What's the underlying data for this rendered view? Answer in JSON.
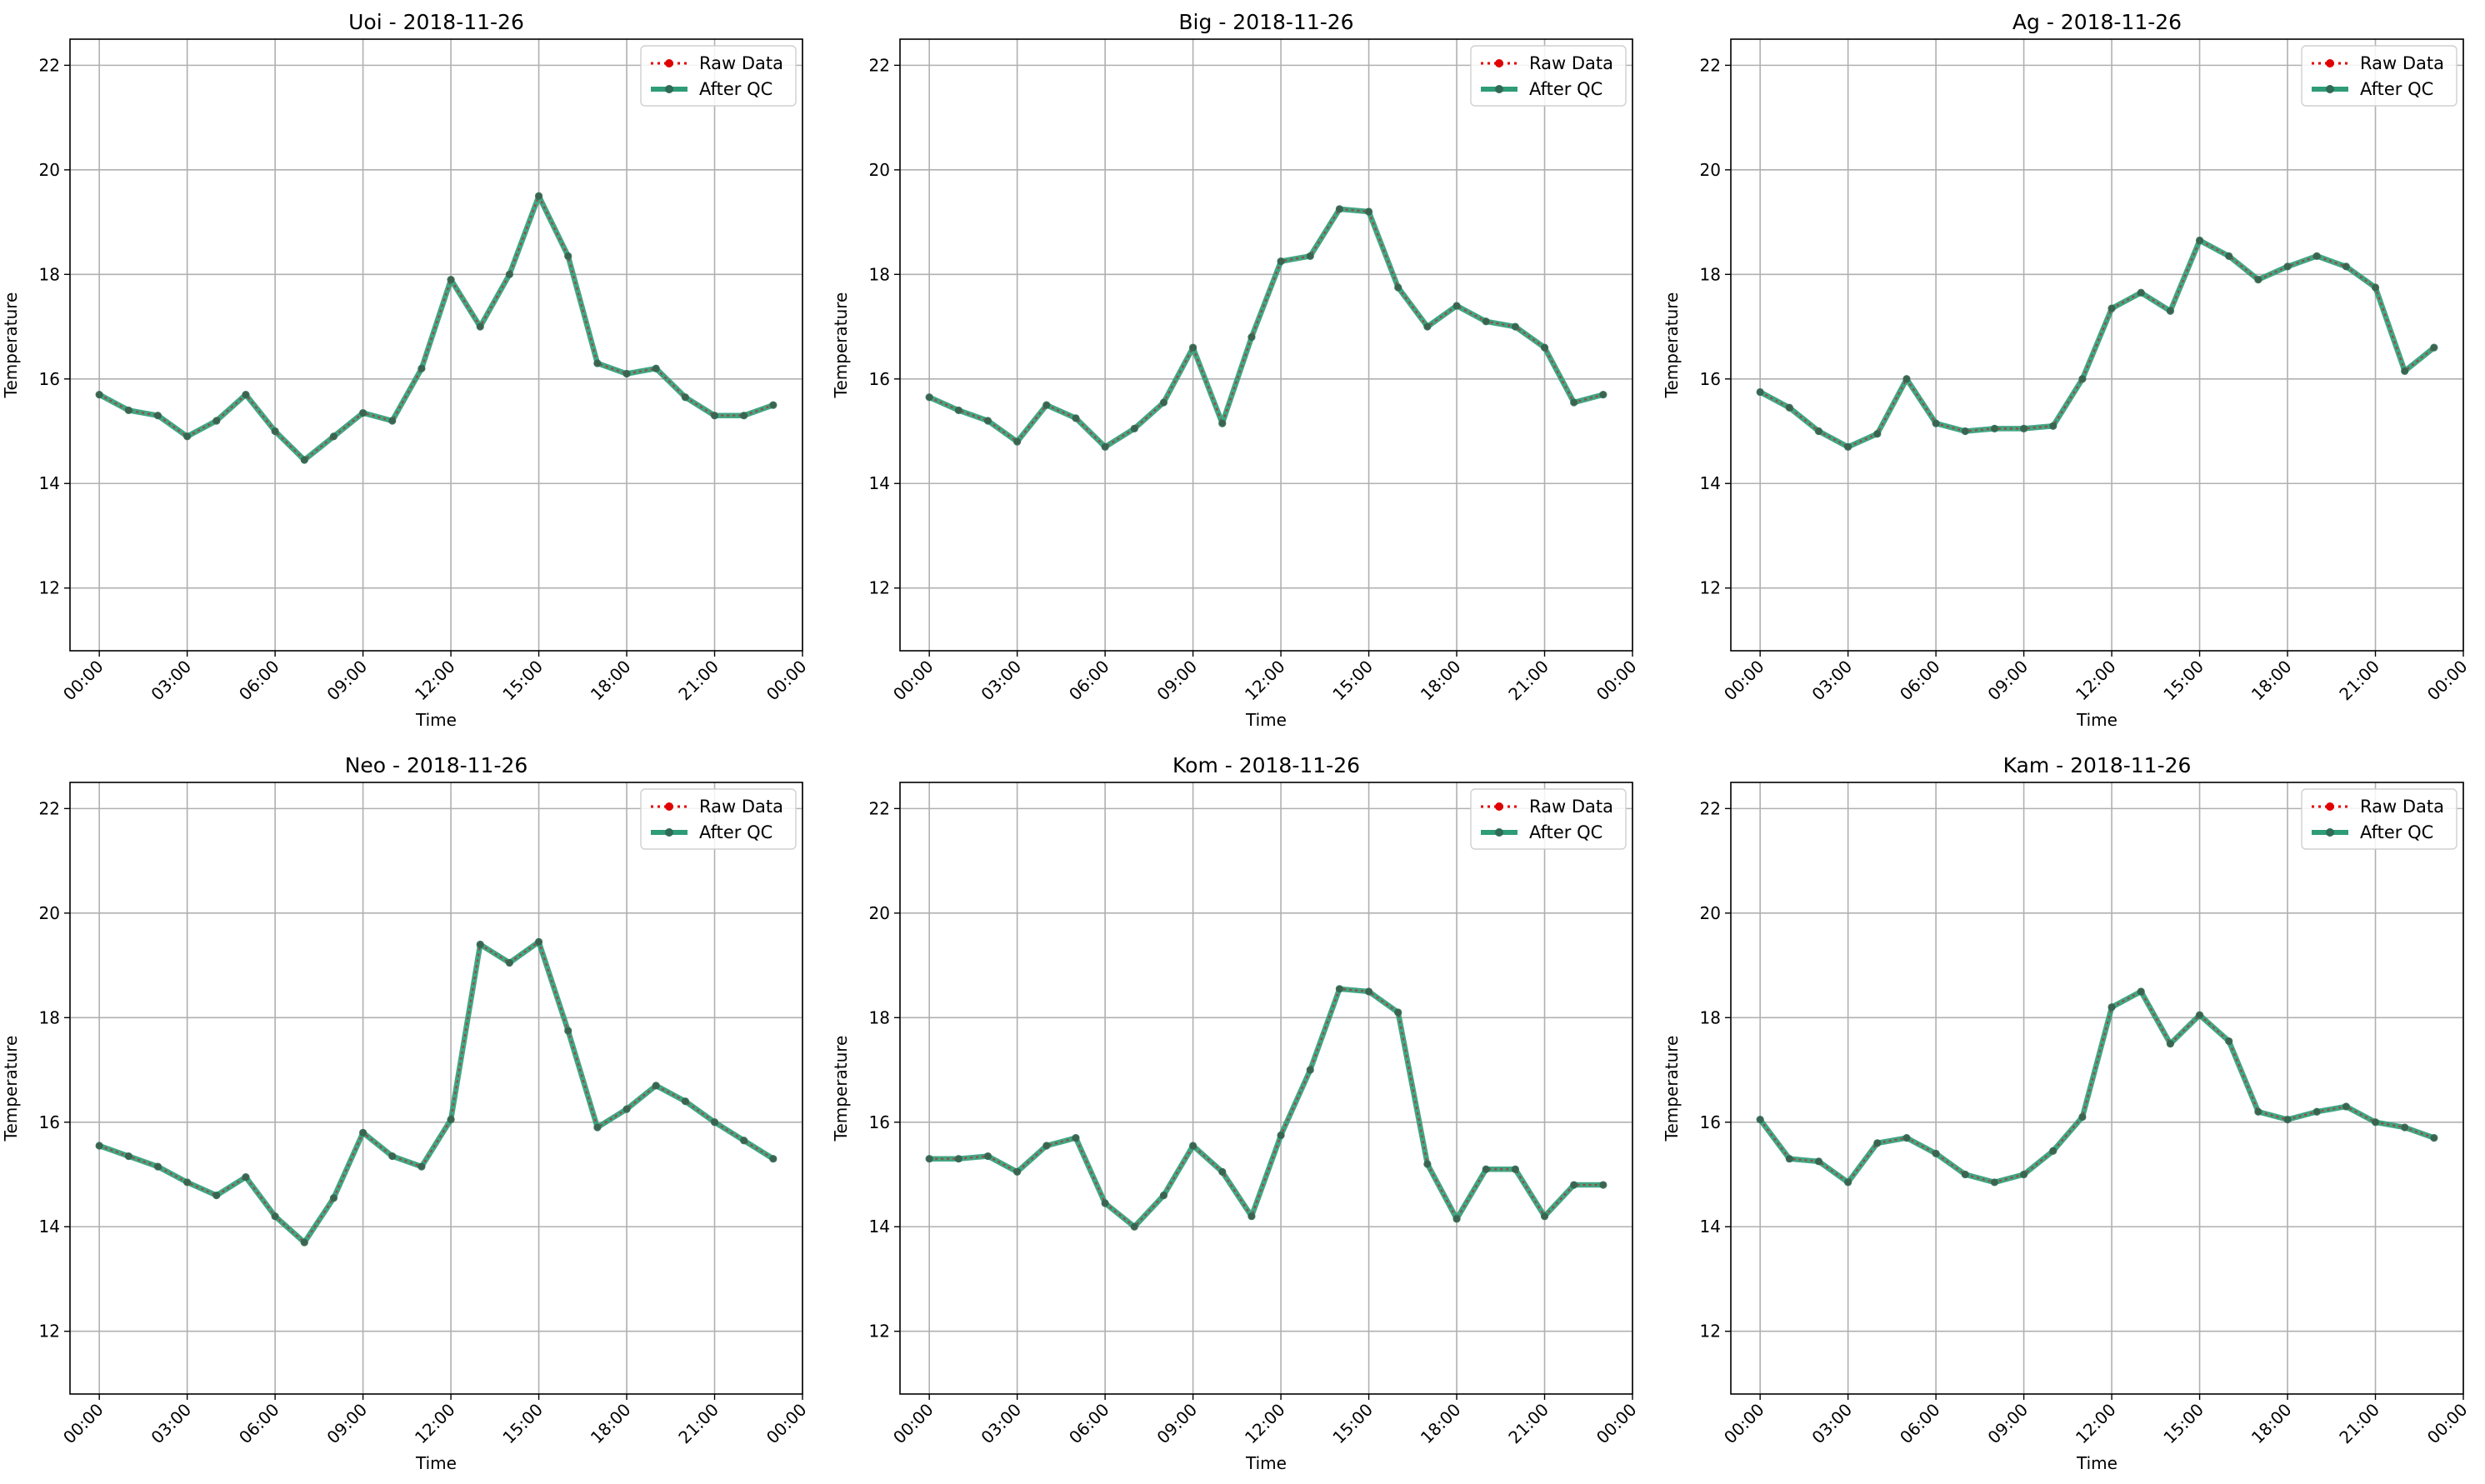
{
  "colors": {
    "raw": "#e00000",
    "qc": "#2e9c78",
    "grid": "#b0b0b0",
    "marker": "#2f6b56"
  },
  "chart_data": [
    {
      "type": "line",
      "title": "Uoi - 2018-11-26",
      "xlabel": "Time",
      "ylabel": "Temperature",
      "xlim": [
        -1,
        24
      ],
      "ylim": [
        10.8,
        22.5
      ],
      "x_ticks": [
        "00:00",
        "03:00",
        "06:00",
        "09:00",
        "12:00",
        "15:00",
        "18:00",
        "21:00",
        "00:00"
      ],
      "y_ticks": [
        "12",
        "14",
        "16",
        "18",
        "20",
        "22"
      ],
      "grid": true,
      "legend": "top-right",
      "legend_entries": [
        "Raw Data",
        "After QC"
      ],
      "x": [
        "00:00",
        "01:00",
        "02:00",
        "03:00",
        "04:00",
        "05:00",
        "06:00",
        "07:00",
        "08:00",
        "09:00",
        "10:00",
        "11:00",
        "12:00",
        "13:00",
        "14:00",
        "15:00",
        "16:00",
        "17:00",
        "18:00",
        "19:00",
        "20:00",
        "21:00",
        "22:00",
        "23:00"
      ],
      "series": [
        {
          "name": "Raw Data",
          "values": [
            15.7,
            15.4,
            15.3,
            14.9,
            15.2,
            15.7,
            15.0,
            14.45,
            14.9,
            15.35,
            15.2,
            16.2,
            17.9,
            17.0,
            18.0,
            19.5,
            18.35,
            16.3,
            16.1,
            16.2,
            15.65,
            15.3,
            15.3,
            15.5
          ]
        },
        {
          "name": "After QC",
          "values": [
            15.7,
            15.4,
            15.3,
            14.9,
            15.2,
            15.7,
            15.0,
            14.45,
            14.9,
            15.35,
            15.2,
            16.2,
            17.9,
            17.0,
            18.0,
            19.5,
            18.35,
            16.3,
            16.1,
            16.2,
            15.65,
            15.3,
            15.3,
            15.5
          ]
        }
      ]
    },
    {
      "type": "line",
      "title": "Big - 2018-11-26",
      "xlabel": "Time",
      "ylabel": "Temperature",
      "xlim": [
        -1,
        24
      ],
      "ylim": [
        10.8,
        22.5
      ],
      "x_ticks": [
        "00:00",
        "03:00",
        "06:00",
        "09:00",
        "12:00",
        "15:00",
        "18:00",
        "21:00",
        "00:00"
      ],
      "y_ticks": [
        "12",
        "14",
        "16",
        "18",
        "20",
        "22"
      ],
      "grid": true,
      "legend": "top-right",
      "legend_entries": [
        "Raw Data",
        "After QC"
      ],
      "x": [
        "00:00",
        "01:00",
        "02:00",
        "03:00",
        "04:00",
        "05:00",
        "06:00",
        "07:00",
        "08:00",
        "09:00",
        "10:00",
        "11:00",
        "12:00",
        "13:00",
        "14:00",
        "15:00",
        "16:00",
        "17:00",
        "18:00",
        "19:00",
        "20:00",
        "21:00",
        "22:00",
        "23:00"
      ],
      "series": [
        {
          "name": "Raw Data",
          "values": [
            15.65,
            15.4,
            15.2,
            14.8,
            15.5,
            15.25,
            14.7,
            15.05,
            15.55,
            16.6,
            15.15,
            16.8,
            18.25,
            18.35,
            19.25,
            19.2,
            17.75,
            17.0,
            17.4,
            17.1,
            17.0,
            16.6,
            15.55,
            15.7
          ]
        },
        {
          "name": "After QC",
          "values": [
            15.65,
            15.4,
            15.2,
            14.8,
            15.5,
            15.25,
            14.7,
            15.05,
            15.55,
            16.6,
            15.15,
            16.8,
            18.25,
            18.35,
            19.25,
            19.2,
            17.75,
            17.0,
            17.4,
            17.1,
            17.0,
            16.6,
            15.55,
            15.7
          ]
        }
      ]
    },
    {
      "type": "line",
      "title": "Ag - 2018-11-26",
      "xlabel": "Time",
      "ylabel": "Temperature",
      "xlim": [
        -1,
        24
      ],
      "ylim": [
        10.8,
        22.5
      ],
      "x_ticks": [
        "00:00",
        "03:00",
        "06:00",
        "09:00",
        "12:00",
        "15:00",
        "18:00",
        "21:00",
        "00:00"
      ],
      "y_ticks": [
        "12",
        "14",
        "16",
        "18",
        "20",
        "22"
      ],
      "grid": true,
      "legend": "top-right",
      "legend_entries": [
        "Raw Data",
        "After QC"
      ],
      "x": [
        "00:00",
        "01:00",
        "02:00",
        "03:00",
        "04:00",
        "05:00",
        "06:00",
        "07:00",
        "08:00",
        "09:00",
        "10:00",
        "11:00",
        "12:00",
        "13:00",
        "14:00",
        "15:00",
        "16:00",
        "17:00",
        "18:00",
        "19:00",
        "20:00",
        "21:00",
        "22:00",
        "23:00"
      ],
      "series": [
        {
          "name": "Raw Data",
          "values": [
            15.75,
            15.45,
            15.0,
            14.7,
            14.95,
            16.0,
            15.15,
            15.0,
            15.05,
            15.05,
            15.1,
            16.0,
            17.35,
            17.65,
            17.3,
            18.65,
            18.35,
            17.9,
            18.15,
            18.35,
            18.15,
            17.75,
            16.15,
            16.6
          ]
        },
        {
          "name": "After QC",
          "values": [
            15.75,
            15.45,
            15.0,
            14.7,
            14.95,
            16.0,
            15.15,
            15.0,
            15.05,
            15.05,
            15.1,
            16.0,
            17.35,
            17.65,
            17.3,
            18.65,
            18.35,
            17.9,
            18.15,
            18.35,
            18.15,
            17.75,
            16.15,
            16.6
          ]
        }
      ]
    },
    {
      "type": "line",
      "title": "Neo - 2018-11-26",
      "xlabel": "Time",
      "ylabel": "Temperature",
      "xlim": [
        -1,
        24
      ],
      "ylim": [
        10.8,
        22.5
      ],
      "x_ticks": [
        "00:00",
        "03:00",
        "06:00",
        "09:00",
        "12:00",
        "15:00",
        "18:00",
        "21:00",
        "00:00"
      ],
      "y_ticks": [
        "12",
        "14",
        "16",
        "18",
        "20",
        "22"
      ],
      "grid": true,
      "legend": "top-right",
      "legend_entries": [
        "Raw Data",
        "After QC"
      ],
      "x": [
        "00:00",
        "01:00",
        "02:00",
        "03:00",
        "04:00",
        "05:00",
        "06:00",
        "07:00",
        "08:00",
        "09:00",
        "10:00",
        "11:00",
        "12:00",
        "13:00",
        "14:00",
        "15:00",
        "16:00",
        "17:00",
        "18:00",
        "19:00",
        "20:00",
        "21:00",
        "22:00",
        "23:00"
      ],
      "series": [
        {
          "name": "Raw Data",
          "values": [
            15.55,
            15.35,
            15.15,
            14.85,
            14.6,
            14.95,
            14.2,
            13.7,
            14.55,
            15.8,
            15.35,
            15.15,
            16.05,
            19.4,
            19.05,
            19.45,
            17.75,
            15.9,
            16.25,
            16.7,
            16.4,
            16.0,
            15.65,
            15.3
          ]
        },
        {
          "name": "After QC",
          "values": [
            15.55,
            15.35,
            15.15,
            14.85,
            14.6,
            14.95,
            14.2,
            13.7,
            14.55,
            15.8,
            15.35,
            15.15,
            16.05,
            19.4,
            19.05,
            19.45,
            17.75,
            15.9,
            16.25,
            16.7,
            16.4,
            16.0,
            15.65,
            15.3
          ]
        }
      ]
    },
    {
      "type": "line",
      "title": "Kom - 2018-11-26",
      "xlabel": "Time",
      "ylabel": "Temperature",
      "xlim": [
        -1,
        24
      ],
      "ylim": [
        10.8,
        22.5
      ],
      "x_ticks": [
        "00:00",
        "03:00",
        "06:00",
        "09:00",
        "12:00",
        "15:00",
        "18:00",
        "21:00",
        "00:00"
      ],
      "y_ticks": [
        "12",
        "14",
        "16",
        "18",
        "20",
        "22"
      ],
      "grid": true,
      "legend": "top-right",
      "legend_entries": [
        "Raw Data",
        "After QC"
      ],
      "x": [
        "00:00",
        "01:00",
        "02:00",
        "03:00",
        "04:00",
        "05:00",
        "06:00",
        "07:00",
        "08:00",
        "09:00",
        "10:00",
        "11:00",
        "12:00",
        "13:00",
        "14:00",
        "15:00",
        "16:00",
        "17:00",
        "18:00",
        "19:00",
        "20:00",
        "21:00",
        "22:00",
        "23:00"
      ],
      "series": [
        {
          "name": "Raw Data",
          "values": [
            15.3,
            15.3,
            15.35,
            15.05,
            15.55,
            15.7,
            14.45,
            14.0,
            14.6,
            15.55,
            15.05,
            14.2,
            15.75,
            17.0,
            18.55,
            18.5,
            18.1,
            15.2,
            14.15,
            15.1,
            15.1,
            14.2,
            14.8,
            14.8
          ]
        },
        {
          "name": "After QC",
          "values": [
            15.3,
            15.3,
            15.35,
            15.05,
            15.55,
            15.7,
            14.45,
            14.0,
            14.6,
            15.55,
            15.05,
            14.2,
            15.75,
            17.0,
            18.55,
            18.5,
            18.1,
            15.2,
            14.15,
            15.1,
            15.1,
            14.2,
            14.8,
            14.8
          ]
        }
      ]
    },
    {
      "type": "line",
      "title": "Kam - 2018-11-26",
      "xlabel": "Time",
      "ylabel": "Temperature",
      "xlim": [
        -1,
        24
      ],
      "ylim": [
        10.8,
        22.5
      ],
      "x_ticks": [
        "00:00",
        "03:00",
        "06:00",
        "09:00",
        "12:00",
        "15:00",
        "18:00",
        "21:00",
        "00:00"
      ],
      "y_ticks": [
        "12",
        "14",
        "16",
        "18",
        "20",
        "22"
      ],
      "grid": true,
      "legend": "top-right",
      "legend_entries": [
        "Raw Data",
        "After QC"
      ],
      "x": [
        "00:00",
        "01:00",
        "02:00",
        "03:00",
        "04:00",
        "05:00",
        "06:00",
        "07:00",
        "08:00",
        "09:00",
        "10:00",
        "11:00",
        "12:00",
        "13:00",
        "14:00",
        "15:00",
        "16:00",
        "17:00",
        "18:00",
        "19:00",
        "20:00",
        "21:00",
        "22:00",
        "23:00"
      ],
      "series": [
        {
          "name": "Raw Data",
          "values": [
            16.05,
            15.3,
            15.25,
            14.85,
            15.6,
            15.7,
            15.4,
            15.0,
            14.85,
            15.0,
            15.45,
            16.1,
            18.2,
            18.5,
            17.5,
            18.05,
            17.55,
            16.2,
            16.05,
            16.2,
            16.3,
            16.0,
            15.9,
            15.7
          ]
        },
        {
          "name": "After QC",
          "values": [
            16.05,
            15.3,
            15.25,
            14.85,
            15.6,
            15.7,
            15.4,
            15.0,
            14.85,
            15.0,
            15.45,
            16.1,
            18.2,
            18.5,
            17.5,
            18.05,
            17.55,
            16.2,
            16.05,
            16.2,
            16.3,
            16.0,
            15.9,
            15.7
          ]
        }
      ]
    }
  ]
}
